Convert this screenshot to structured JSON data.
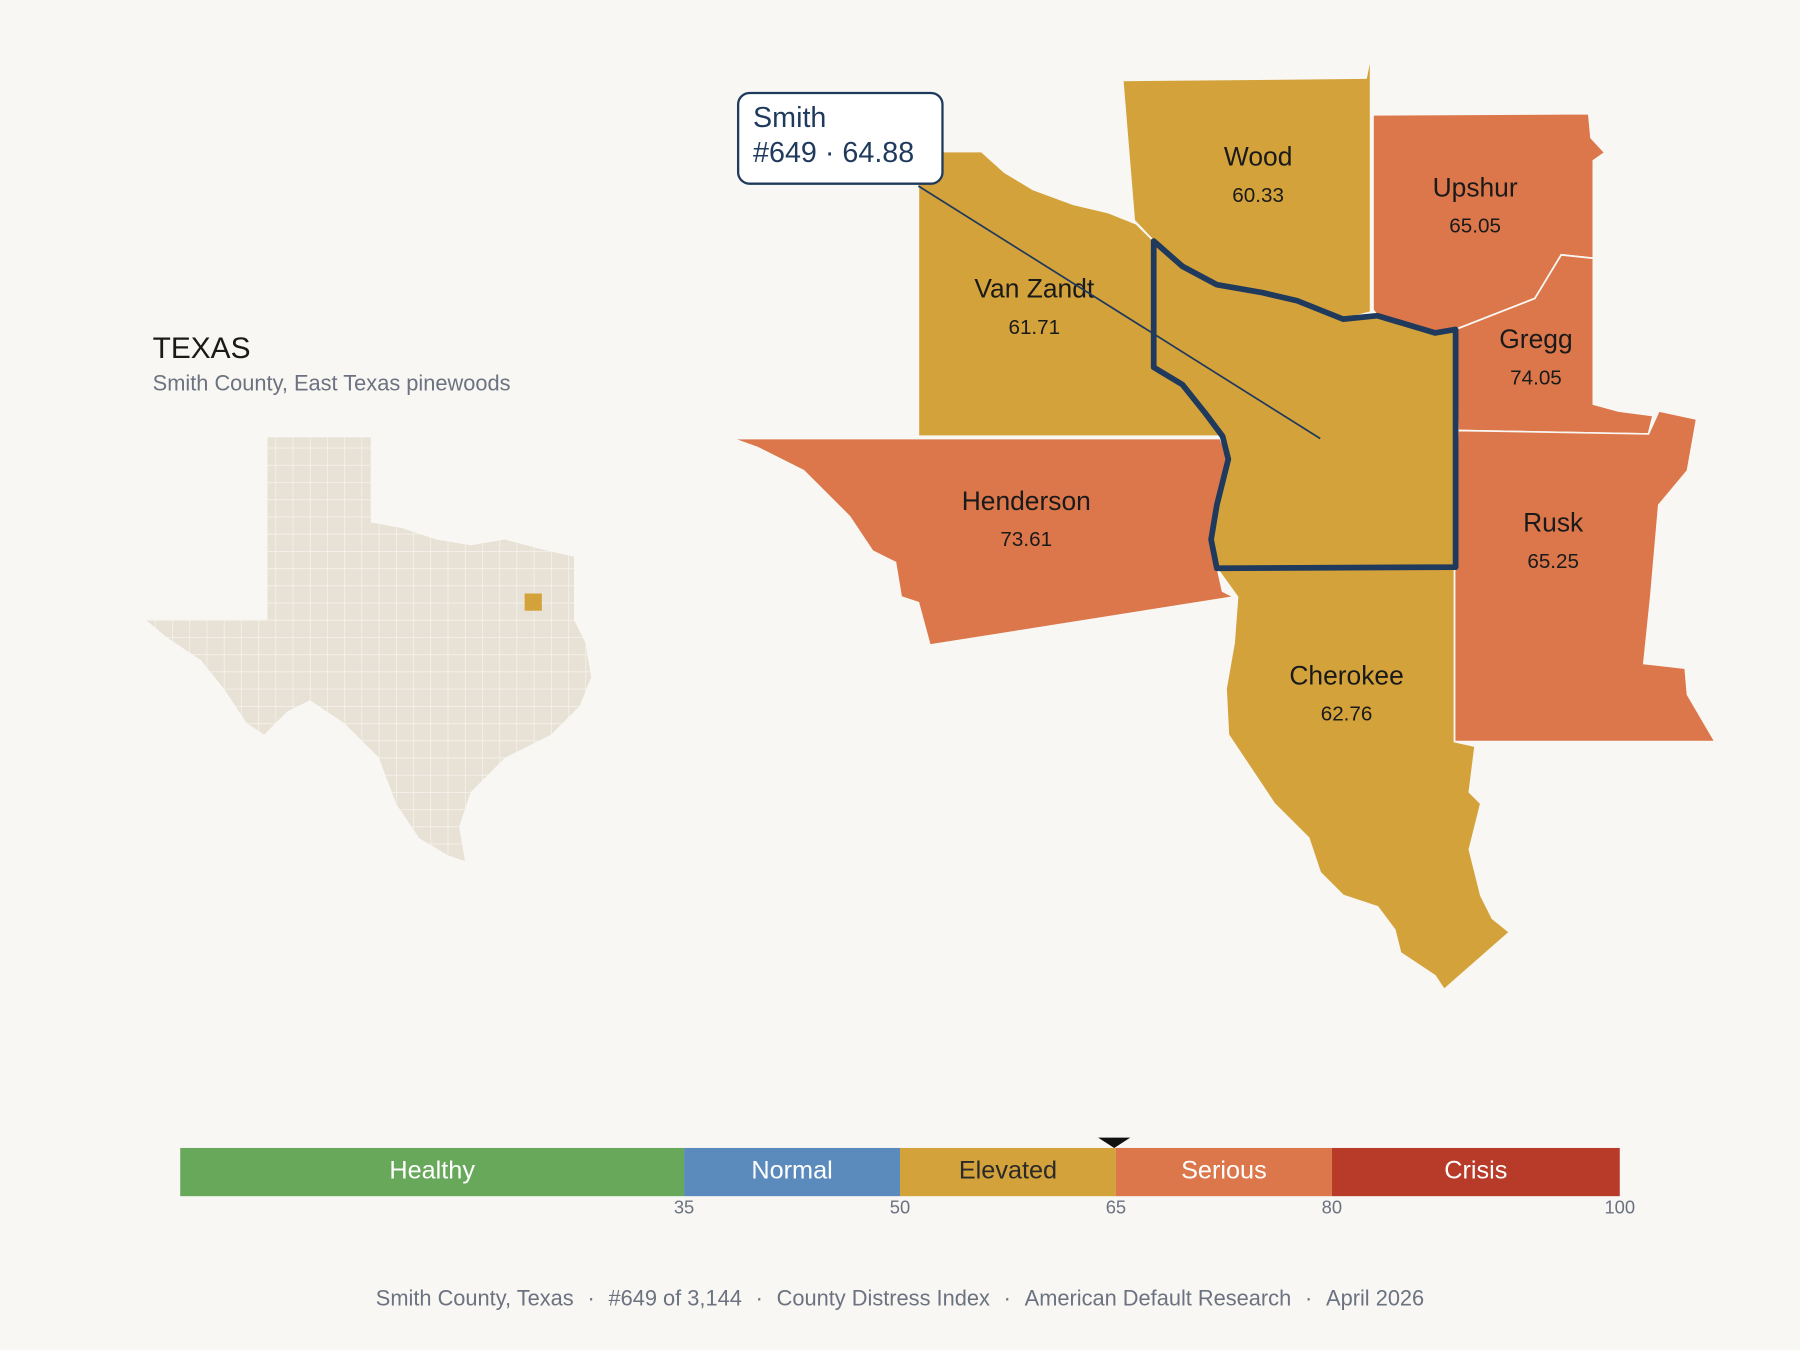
{
  "header": {
    "title": "TEXAS",
    "subtitle": "Smith County, East Texas pinewoods"
  },
  "selected": {
    "name": "Smith",
    "rank": "#649",
    "separator": "·",
    "value": 64.88
  },
  "counties": [
    {
      "name": "Wood",
      "value": 60.33
    },
    {
      "name": "Upshur",
      "value": 65.05
    },
    {
      "name": "Gregg",
      "value": 74.05
    },
    {
      "name": "Van Zandt",
      "value": 61.71
    },
    {
      "name": "Henderson",
      "value": 73.61
    },
    {
      "name": "Rusk",
      "value": 65.25
    },
    {
      "name": "Cherokee",
      "value": 62.76
    }
  ],
  "legend": {
    "range": [
      0,
      100
    ],
    "breaks": [
      35,
      50,
      65,
      80,
      100
    ],
    "bands": [
      {
        "label": "Healthy",
        "color": "#67a85a",
        "text_color": "#ffffff"
      },
      {
        "label": "Normal",
        "color": "#5b8bbd",
        "text_color": "#ffffff"
      },
      {
        "label": "Elevated",
        "color": "#d4a23a",
        "text_color": "#2a2a2a"
      },
      {
        "label": "Serious",
        "color": "#dc774b",
        "text_color": "#ffffff"
      },
      {
        "label": "Crisis",
        "color": "#b83b2a",
        "text_color": "#ffffff"
      }
    ]
  },
  "footer": {
    "separator": "·",
    "items": [
      "Smith County, Texas",
      "#649 of 3,144",
      "County Distress Index",
      "American Default Research",
      "April 2026"
    ]
  }
}
